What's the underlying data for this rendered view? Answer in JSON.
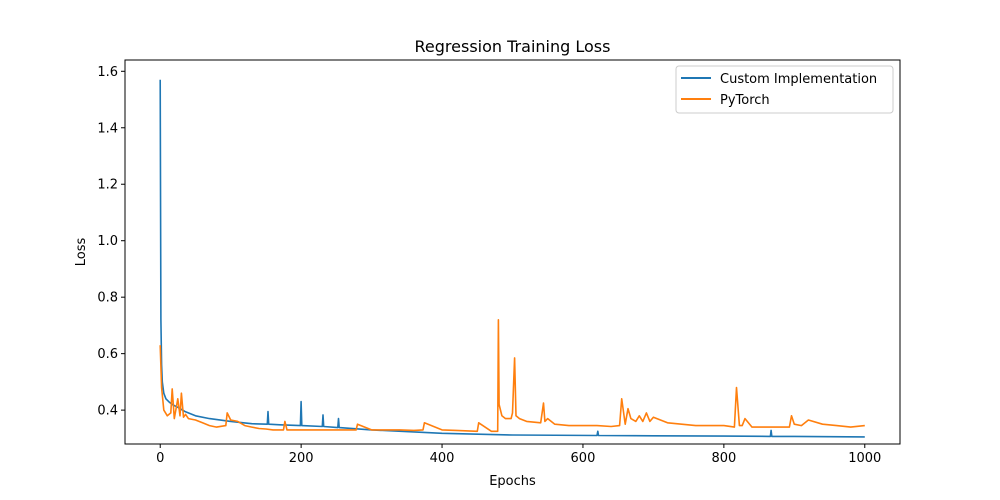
{
  "chart_data": {
    "type": "line",
    "title": "Regression Training Loss",
    "xlabel": "Epochs",
    "ylabel": "Loss",
    "xlim": [
      -50,
      1050
    ],
    "ylim": [
      0.28,
      1.64
    ],
    "xticks": [
      0,
      200,
      400,
      600,
      800,
      1000
    ],
    "yticks": [
      0.4,
      0.6,
      0.8,
      1.0,
      1.2,
      1.4,
      1.6
    ],
    "xtick_labels": [
      "0",
      "200",
      "400",
      "600",
      "800",
      "1000"
    ],
    "ytick_labels": [
      "0.4",
      "0.6",
      "0.8",
      "1.0",
      "1.2",
      "1.4",
      "1.6"
    ],
    "grid": false,
    "legend_position": "top-right",
    "series": [
      {
        "name": "Custom Implementation",
        "color": "#1f77b4",
        "x": [
          0,
          1,
          2,
          3,
          5,
          8,
          12,
          17,
          25,
          35,
          50,
          70,
          100,
          130,
          152,
          153,
          154,
          170,
          199,
          200,
          201,
          230,
          231,
          232,
          252,
          253,
          254,
          300,
          400,
          500,
          620,
          621,
          622,
          700,
          800,
          866,
          867,
          868,
          900,
          1000
        ],
        "y": [
          1.57,
          0.72,
          0.56,
          0.5,
          0.46,
          0.44,
          0.43,
          0.42,
          0.41,
          0.395,
          0.38,
          0.37,
          0.36,
          0.352,
          0.35,
          0.395,
          0.35,
          0.348,
          0.345,
          0.43,
          0.345,
          0.342,
          0.383,
          0.342,
          0.338,
          0.37,
          0.338,
          0.33,
          0.318,
          0.312,
          0.31,
          0.325,
          0.31,
          0.309,
          0.308,
          0.307,
          0.328,
          0.307,
          0.307,
          0.305
        ]
      },
      {
        "name": "PyTorch",
        "color": "#ff7f0e",
        "x": [
          0,
          2,
          5,
          10,
          15,
          17,
          20,
          25,
          28,
          30,
          33,
          36,
          40,
          50,
          60,
          70,
          80,
          93,
          95,
          100,
          110,
          120,
          130,
          140,
          150,
          160,
          175,
          177,
          180,
          190,
          200,
          220,
          240,
          260,
          278,
          280,
          300,
          320,
          340,
          360,
          373,
          375,
          400,
          420,
          450,
          452,
          470,
          479,
          480,
          481,
          485,
          490,
          498,
          500,
          503,
          505,
          510,
          520,
          540,
          544,
          546,
          550,
          560,
          580,
          600,
          620,
          640,
          652,
          655,
          660,
          664,
          668,
          675,
          680,
          685,
          690,
          695,
          700,
          720,
          740,
          760,
          780,
          800,
          815,
          818,
          822,
          826,
          830,
          840,
          860,
          880,
          893,
          896,
          900,
          910,
          920,
          940,
          960,
          980,
          1000
        ],
        "y": [
          0.63,
          0.48,
          0.4,
          0.38,
          0.39,
          0.475,
          0.37,
          0.44,
          0.38,
          0.46,
          0.375,
          0.385,
          0.37,
          0.365,
          0.355,
          0.345,
          0.34,
          0.345,
          0.39,
          0.365,
          0.36,
          0.345,
          0.34,
          0.335,
          0.333,
          0.33,
          0.33,
          0.36,
          0.33,
          0.33,
          0.33,
          0.33,
          0.33,
          0.33,
          0.33,
          0.35,
          0.33,
          0.33,
          0.33,
          0.328,
          0.33,
          0.355,
          0.33,
          0.328,
          0.325,
          0.355,
          0.325,
          0.325,
          0.72,
          0.42,
          0.38,
          0.37,
          0.37,
          0.39,
          0.585,
          0.38,
          0.37,
          0.36,
          0.355,
          0.425,
          0.36,
          0.37,
          0.35,
          0.345,
          0.345,
          0.345,
          0.342,
          0.345,
          0.44,
          0.35,
          0.405,
          0.37,
          0.36,
          0.38,
          0.36,
          0.39,
          0.36,
          0.375,
          0.355,
          0.35,
          0.345,
          0.345,
          0.345,
          0.34,
          0.48,
          0.345,
          0.345,
          0.37,
          0.34,
          0.34,
          0.34,
          0.34,
          0.38,
          0.35,
          0.345,
          0.365,
          0.35,
          0.345,
          0.34,
          0.345
        ]
      }
    ]
  }
}
